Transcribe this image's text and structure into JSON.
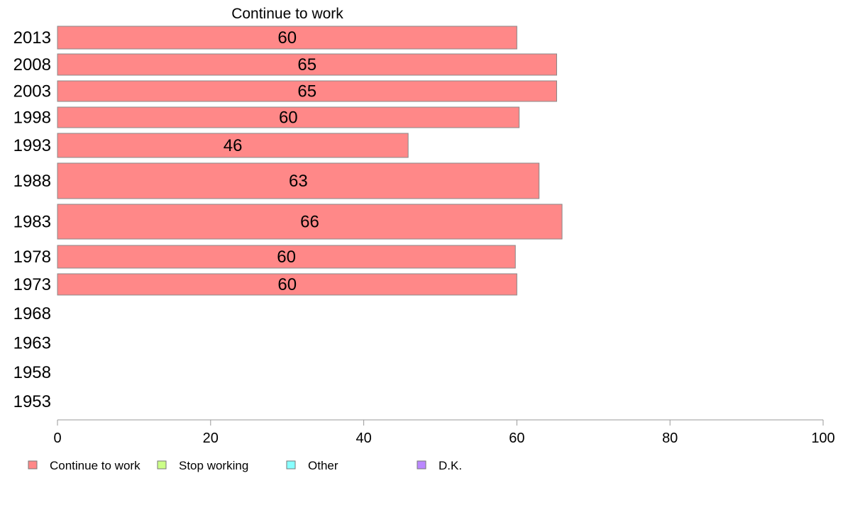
{
  "chart_data": {
    "type": "bar",
    "orientation": "horizontal",
    "title": "Continue to work",
    "xlabel": "",
    "ylabel": "",
    "xlim": [
      0,
      100
    ],
    "x_ticks": [
      0,
      20,
      40,
      60,
      80,
      100
    ],
    "grid": false,
    "legend_position": "bottom-left",
    "categories": [
      "2013",
      "2008",
      "2003",
      "1998",
      "1993",
      "1988",
      "1983",
      "1978",
      "1973",
      "1968",
      "1963",
      "1958",
      "1953"
    ],
    "series": [
      {
        "name": "Continue to work",
        "color": "#ff8888",
        "values": [
          60,
          65.2,
          65.2,
          60.3,
          45.8,
          62.9,
          65.9,
          59.8,
          60,
          null,
          null,
          null,
          null
        ],
        "labels": [
          "60",
          "65",
          "65",
          "60",
          "46",
          "63",
          "66",
          "60",
          "60",
          "",
          "",
          "",
          ""
        ]
      }
    ],
    "legend": [
      {
        "name": "Continue to work",
        "color": "#ff8888"
      },
      {
        "name": "Stop working",
        "color": "#ccff88"
      },
      {
        "name": "Other",
        "color": "#88ffff"
      },
      {
        "name": "D.K.",
        "color": "#bb88ff"
      }
    ]
  }
}
